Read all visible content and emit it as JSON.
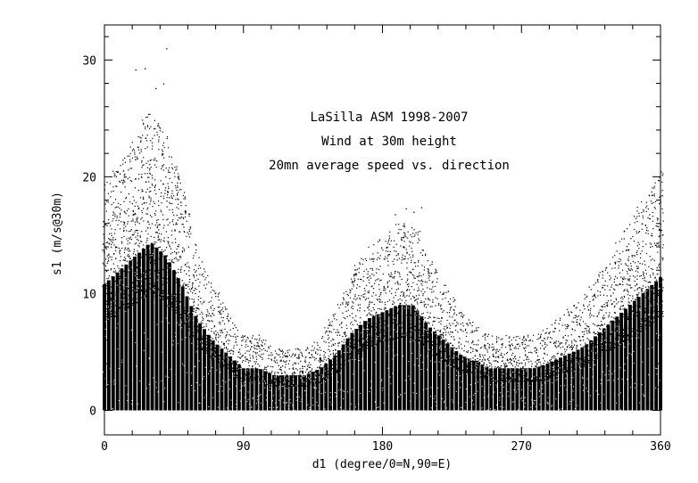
{
  "chart_data": {
    "type": "scatter",
    "title_lines": [
      "LaSilla ASM 1998-2007",
      "Wind at 30m height",
      "20mn average speed vs. direction"
    ],
    "xlabel": "d1 (degree/0=N,90=E)",
    "ylabel": "s1 (m/s@30m)",
    "xlim": [
      0,
      360
    ],
    "ylim": [
      -2.1,
      33
    ],
    "x_ticks": [
      "0",
      "90",
      "180",
      "270",
      "360"
    ],
    "x_tick_values": [
      0,
      90,
      180,
      270,
      360
    ],
    "x_minor_step": 18,
    "y_ticks": [
      "0",
      "10",
      "20",
      "30"
    ],
    "y_tick_values": [
      0,
      10,
      20,
      30
    ],
    "y_minor_step": 2,
    "grid": false,
    "point_color": "#000000",
    "direction_bin_deg": 2.8125,
    "upper_envelope": {
      "x": [
        0,
        10,
        20,
        30,
        40,
        50,
        60,
        70,
        80,
        90,
        100,
        110,
        120,
        130,
        140,
        150,
        160,
        170,
        180,
        190,
        200,
        210,
        220,
        230,
        240,
        250,
        260,
        270,
        280,
        290,
        300,
        310,
        320,
        330,
        340,
        350,
        360
      ],
      "y": [
        18,
        20,
        22,
        24,
        22,
        18,
        13,
        10,
        8,
        6,
        6,
        5,
        5,
        5,
        6,
        8,
        11,
        13,
        14,
        15,
        15,
        12,
        10,
        8,
        7,
        6,
        6,
        6,
        6,
        7,
        8,
        9,
        11,
        13,
        15,
        17,
        19
      ]
    },
    "outliers": {
      "x": [
        20,
        26,
        40,
        38,
        33,
        195,
        205,
        200,
        188
      ],
      "y": [
        29.2,
        29.3,
        31,
        28,
        27.6,
        17.3,
        17.4,
        17,
        16.8
      ]
    }
  }
}
